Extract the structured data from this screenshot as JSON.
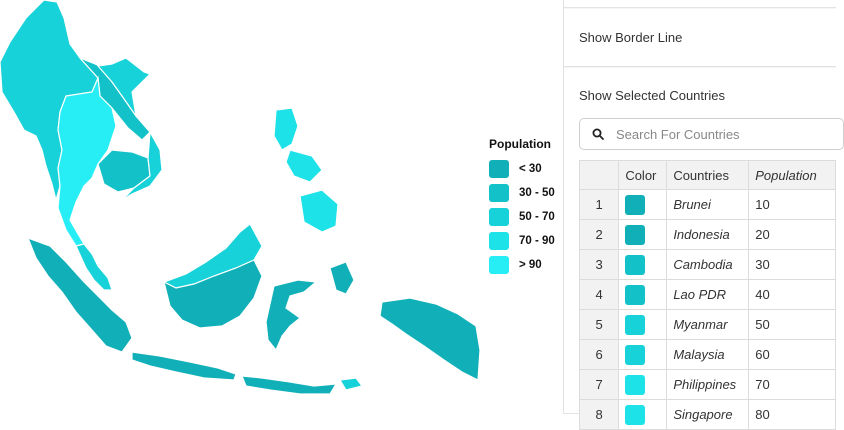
{
  "map": {
    "colors": {
      "lt30": "#11b0b8",
      "30to50": "#13c2c8",
      "50to70": "#17d2d8",
      "70to90": "#1de2e8",
      "gt90": "#26eef4",
      "border": "#ffffff"
    }
  },
  "legend": {
    "title": "Population",
    "items": [
      {
        "label": "< 30",
        "color": "#11b0b8"
      },
      {
        "label": "30 - 50",
        "color": "#13c2c8"
      },
      {
        "label": "50 - 70",
        "color": "#17d2d8"
      },
      {
        "label": "70 - 90",
        "color": "#1de2e8"
      },
      {
        "label": "> 90",
        "color": "#26eef4"
      }
    ]
  },
  "panel": {
    "border_line_label": "Show Border Line",
    "selected_label": "Show Selected Countries",
    "search_placeholder": "Search For Countries",
    "table": {
      "headers": {
        "color": "Color",
        "countries": "Countries",
        "population": "Population"
      },
      "rows": [
        {
          "idx": "1",
          "color": "#11b0b8",
          "country": "Brunei",
          "population": "10"
        },
        {
          "idx": "2",
          "color": "#11b0b8",
          "country": "Indonesia",
          "population": "20"
        },
        {
          "idx": "3",
          "color": "#13c2c8",
          "country": "Cambodia",
          "population": "30"
        },
        {
          "idx": "4",
          "color": "#13c2c8",
          "country": "Lao PDR",
          "population": "40"
        },
        {
          "idx": "5",
          "color": "#17d2d8",
          "country": "Myanmar",
          "population": "50"
        },
        {
          "idx": "6",
          "color": "#17d2d8",
          "country": "Malaysia",
          "population": "60"
        },
        {
          "idx": "7",
          "color": "#1de2e8",
          "country": "Philippines",
          "population": "70"
        },
        {
          "idx": "8",
          "color": "#1de2e8",
          "country": "Singapore",
          "population": "80"
        }
      ]
    }
  }
}
